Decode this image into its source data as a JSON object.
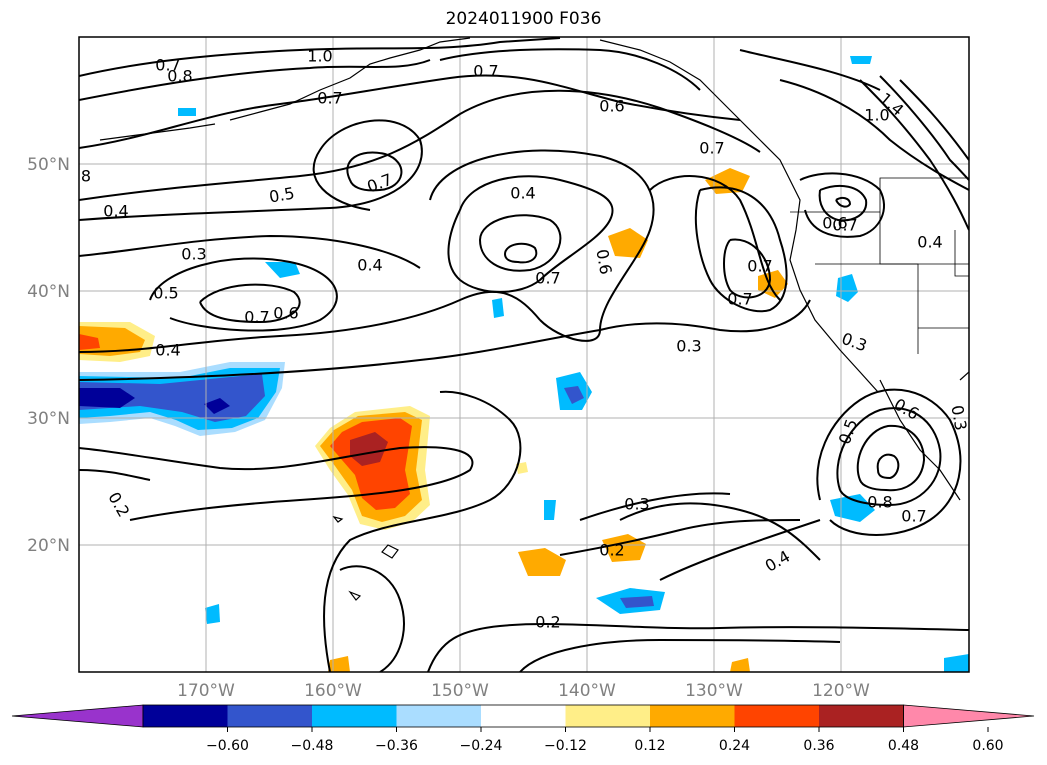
{
  "title": "2024011900 F036",
  "latitude_labels": [
    "20°N",
    "30°N",
    "40°N",
    "50°N"
  ],
  "longitude_labels": [
    "170°W",
    "160°W",
    "150°W",
    "140°W",
    "130°W",
    "120°W"
  ],
  "contour_labels": [
    "0.7",
    "0.8",
    "1.0",
    "0.7",
    "0.7",
    "1.4",
    "1.0",
    "0.7",
    "0.6",
    "0.7",
    "8",
    "0.5",
    "0.4",
    "0.4",
    "0.7",
    "0.4",
    "0.3",
    "0.4",
    "0.6",
    "0.7",
    "0.7",
    "0.5",
    "0.7",
    "0.6",
    "0.6",
    "0.7",
    "0.3",
    "0.4",
    "0.3",
    "0.5",
    "0.6",
    "0.3",
    "0.8",
    "0.7",
    "0.2",
    "0.3",
    "0.2",
    "0.4",
    "0.2"
  ],
  "colorbar": {
    "colors": [
      "#9933cc",
      "#000099",
      "#3355cc",
      "#00bbff",
      "#aaddff",
      "#ffffff",
      "#ffee88",
      "#ffaa00",
      "#ff4400",
      "#aa2222",
      "#ff88aa"
    ],
    "tick_labels": [
      "−0.60",
      "−0.48",
      "−0.36",
      "−0.24",
      "−0.12",
      "0.12",
      "0.24",
      "0.36",
      "0.48",
      "0.60"
    ]
  }
}
